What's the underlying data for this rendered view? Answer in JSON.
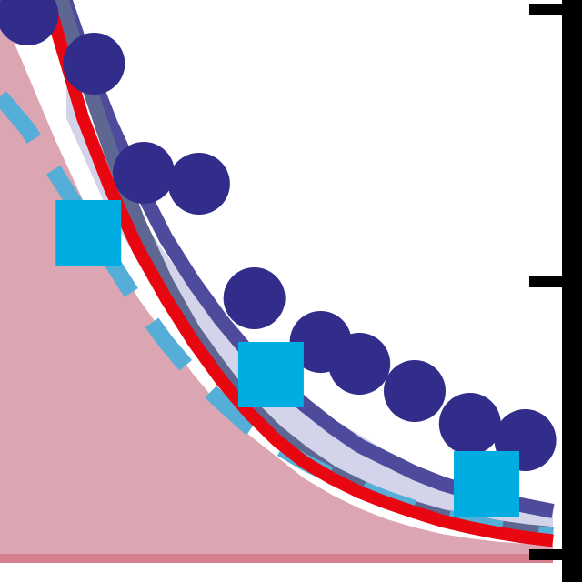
{
  "chart_data": {
    "type": "line",
    "title": "",
    "xlabel": "",
    "ylabel": "",
    "xlim": [
      0,
      10
    ],
    "ylim": [
      0,
      10
    ],
    "grid": false,
    "legend": "none",
    "series": [
      {
        "kind": "area",
        "color": "#dba6b2",
        "x": [
          0,
          0.5,
          1,
          1.5,
          2,
          2.5,
          3,
          3.5,
          4,
          4.5,
          5,
          5.5,
          6,
          6.5,
          7,
          7.5,
          8,
          8.5,
          9,
          9.5,
          10
        ],
        "y": [
          10.0,
          8.8,
          7.6,
          6.5,
          5.6,
          4.7,
          4.0,
          3.3,
          2.7,
          2.2,
          1.8,
          1.4,
          1.1,
          0.85,
          0.65,
          0.5,
          0.38,
          0.3,
          0.24,
          0.2,
          0.18
        ]
      },
      {
        "kind": "band",
        "color": "#d3d3ea",
        "x": [
          1.2,
          2,
          3,
          4,
          5,
          6,
          7,
          8,
          9,
          10
        ],
        "y_upper": [
          8.6,
          7.0,
          5.5,
          4.2,
          3.3,
          2.5,
          1.9,
          1.4,
          1.1,
          0.8
        ],
        "y_lower": [
          8.0,
          6.2,
          4.6,
          3.2,
          2.2,
          1.5,
          1.0,
          0.65,
          0.45,
          0.35
        ]
      },
      {
        "kind": "line",
        "color": "#4e4a9c",
        "x": [
          0.9,
          1.5,
          2,
          2.5,
          3,
          3.5,
          4,
          4.5,
          5,
          5.5,
          6,
          6.5,
          7,
          7.5,
          8,
          8.5,
          9,
          9.5,
          10
        ],
        "y": [
          11.0,
          9.2,
          7.9,
          6.8,
          5.8,
          5.0,
          4.3,
          3.7,
          3.2,
          2.75,
          2.35,
          2.0,
          1.75,
          1.5,
          1.3,
          1.15,
          1.0,
          0.9,
          0.8
        ]
      },
      {
        "kind": "line",
        "color": "#5d6792",
        "x": [
          1.1,
          1.5,
          2,
          2.5,
          3,
          3.5,
          4,
          4.5,
          5,
          5.5,
          6,
          6.5,
          7,
          7.5,
          8,
          8.5,
          9,
          9.5,
          10
        ],
        "y": [
          10.2,
          8.9,
          7.4,
          6.1,
          5.0,
          4.1,
          3.4,
          2.75,
          2.25,
          1.85,
          1.5,
          1.25,
          1.02,
          0.85,
          0.7,
          0.6,
          0.5,
          0.43,
          0.38
        ]
      },
      {
        "kind": "line",
        "dash": true,
        "color": "#55aed8",
        "x": [
          0,
          0.5,
          1,
          1.5,
          2,
          2.5,
          3,
          3.5,
          4,
          4.5,
          5,
          5.5,
          6,
          6.5,
          7,
          7.5,
          8,
          8.5,
          9,
          9.5,
          10
        ],
        "y": [
          8.4,
          7.8,
          7.0,
          6.2,
          5.4,
          4.6,
          3.9,
          3.3,
          2.8,
          2.35,
          2.0,
          1.7,
          1.45,
          1.22,
          1.02,
          0.85,
          0.7,
          0.58,
          0.48,
          0.4,
          0.35
        ]
      },
      {
        "kind": "line",
        "color": "#e80610",
        "x": [
          0.65,
          1,
          1.5,
          2,
          2.5,
          3,
          3.5,
          4,
          4.5,
          5,
          5.5,
          6,
          6.5,
          7,
          7.5,
          8,
          8.5,
          9,
          9.5,
          10
        ],
        "y": [
          11.0,
          9.7,
          8.0,
          6.7,
          5.6,
          4.7,
          3.9,
          3.2,
          2.6,
          2.1,
          1.7,
          1.4,
          1.15,
          0.95,
          0.78,
          0.62,
          0.5,
          0.4,
          0.32,
          0.26
        ]
      },
      {
        "kind": "markers",
        "marker": "circle",
        "color": "#322c8a",
        "x": [
          0.5,
          1.7,
          2.6,
          3.6,
          4.6,
          5.8,
          6.5,
          7.5,
          8.5,
          9.5
        ],
        "y": [
          9.9,
          9.0,
          7.0,
          6.8,
          4.7,
          3.9,
          3.5,
          3.0,
          2.4,
          2.1
        ]
      },
      {
        "kind": "markers",
        "marker": "square",
        "color": "#00ade3",
        "x": [
          1.6,
          4.9,
          8.8
        ],
        "y": [
          5.9,
          3.3,
          1.3
        ]
      }
    ],
    "axes": {
      "right_spine_color": "#000000",
      "bottom_baseline_color": "#d7818f",
      "right_ticks_y": [
        10,
        5,
        0
      ]
    }
  }
}
